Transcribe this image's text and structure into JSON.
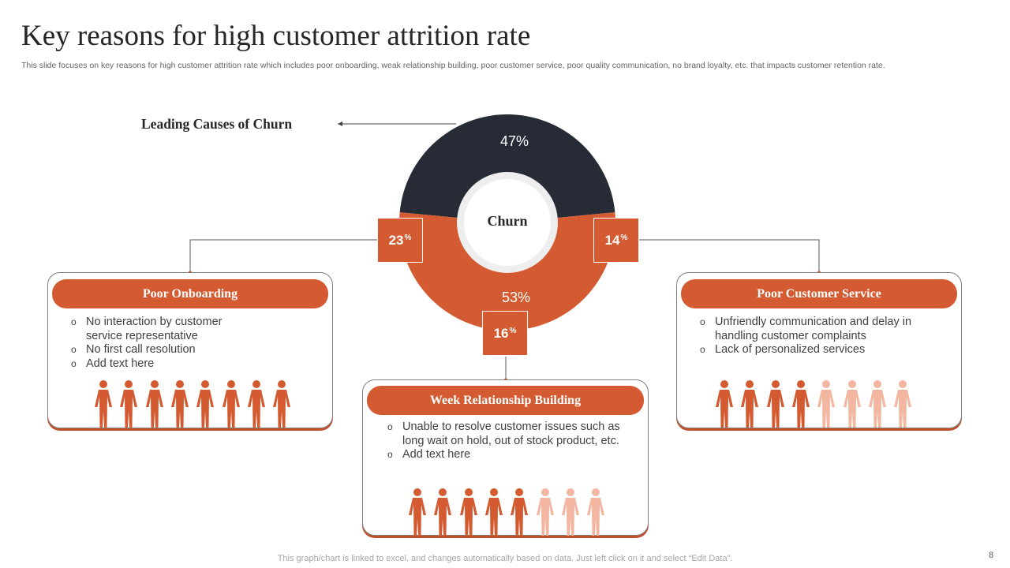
{
  "slide": {
    "title": "Key reasons for high customer attrition rate",
    "subtitle": "This slide focuses on key reasons for high customer attrition rate which includes poor onboarding, weak relationship building, poor customer service, poor quality communication, no brand loyalty,  etc. that impacts customer retention rate.",
    "footer": "This graph/chart is linked to excel,  and changes automatically based on data. Just left click on it and select “Edit Data”.",
    "page_number": "8"
  },
  "donut": {
    "label": "Leading Causes of Churn",
    "center_label": "Churn",
    "top_segment": "47%",
    "bottom_segment": "53%",
    "top_value": 47,
    "bottom_value": 53
  },
  "colors": {
    "accent": "#d35a31",
    "dark": "#262b35",
    "light_person": "#f3b6a1"
  },
  "cards": [
    {
      "title": "Poor Onboarding",
      "percent": "23",
      "percent_suffix": "%",
      "bullets": [
        "No interaction by customer service representative",
        "No first call resolution",
        "Add text here"
      ],
      "people_filled": 8,
      "people_total": 8
    },
    {
      "title": "Week Relationship Building",
      "percent": "16",
      "percent_suffix": "%",
      "bullets": [
        "Unable to resolve customer issues such as long wait on hold, out of stock product, etc.",
        "Add text here"
      ],
      "people_filled": 5,
      "people_total": 8
    },
    {
      "title": "Poor Customer Service",
      "percent": "14",
      "percent_suffix": "%",
      "bullets": [
        "Unfriendly communication and delay in handling customer complaints",
        "Lack of personalized services"
      ],
      "people_filled": 4,
      "people_total": 8
    }
  ]
}
